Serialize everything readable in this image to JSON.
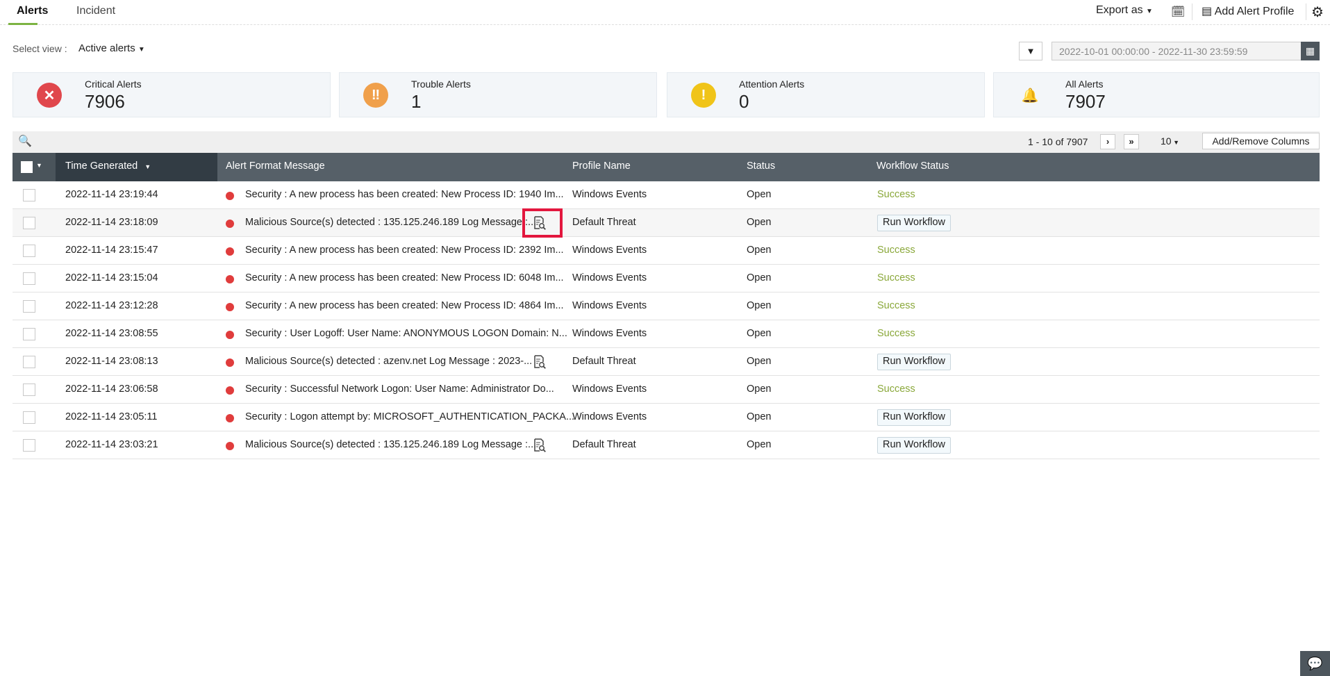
{
  "tabs": [
    {
      "label": "Alerts",
      "active": true
    },
    {
      "label": "Incident",
      "active": false
    }
  ],
  "top_actions": {
    "export_label": "Export as",
    "add_profile_label": "Add Alert Profile",
    "schedule_icon": "report-schedule-icon",
    "settings_icon": "gear-icon"
  },
  "select_view": {
    "label": "Select view :",
    "value": "Active alerts"
  },
  "date_range": "2022-10-01 00:00:00 - 2022-11-30 23:59:59",
  "cards": [
    {
      "label": "Critical Alerts",
      "count": "7906",
      "color": "#e0474c",
      "icon": "close-icon"
    },
    {
      "label": "Trouble Alerts",
      "count": "1",
      "color": "#f0a04b",
      "icon": "double-exclamation-icon"
    },
    {
      "label": "Attention Alerts",
      "count": "0",
      "color": "#f0c419",
      "icon": "exclamation-icon"
    },
    {
      "label": "All Alerts",
      "count": "7907",
      "color": "#2f86c5",
      "icon": "bell-icon"
    }
  ],
  "pagination": {
    "range": "1 - 10 of 7907",
    "page_size": "10",
    "columns_button": "Add/Remove Columns"
  },
  "columns": [
    "Time Generated",
    "Alert Format Message",
    "Profile Name",
    "Status",
    "Workflow Status"
  ],
  "rows": [
    {
      "time": "2022-11-14 23:19:44",
      "message": "Security : A new process has been created: New Process ID: 1940 Im...",
      "profile": "Windows Events",
      "status": "Open",
      "workflow": "Success"
    },
    {
      "time": "2022-11-14 23:18:09",
      "message": "Malicious Source(s) detected : 135.125.246.189 Log Message :...",
      "profile": "Default Threat",
      "status": "Open",
      "workflow": "Run Workflow",
      "doc_icon": true,
      "highlighted": true
    },
    {
      "time": "2022-11-14 23:15:47",
      "message": "Security : A new process has been created: New Process ID: 2392 Im...",
      "profile": "Windows Events",
      "status": "Open",
      "workflow": "Success"
    },
    {
      "time": "2022-11-14 23:15:04",
      "message": "Security : A new process has been created: New Process ID: 6048 Im...",
      "profile": "Windows Events",
      "status": "Open",
      "workflow": "Success"
    },
    {
      "time": "2022-11-14 23:12:28",
      "message": "Security : A new process has been created: New Process ID: 4864 Im...",
      "profile": "Windows Events",
      "status": "Open",
      "workflow": "Success"
    },
    {
      "time": "2022-11-14 23:08:55",
      "message": "Security : User Logoff: User Name: ANONYMOUS LOGON Domain: N...",
      "profile": "Windows Events",
      "status": "Open",
      "workflow": "Success"
    },
    {
      "time": "2022-11-14 23:08:13",
      "message": "Malicious Source(s) detected : azenv.net Log Message : 2023-...",
      "profile": "Default Threat",
      "status": "Open",
      "workflow": "Run Workflow",
      "doc_icon": true
    },
    {
      "time": "2022-11-14 23:06:58",
      "message": "Security : Successful Network Logon: User Name: Administrator Do...",
      "profile": "Windows Events",
      "status": "Open",
      "workflow": "Success"
    },
    {
      "time": "2022-11-14 23:05:11",
      "message": "Security : Logon attempt by: MICROSOFT_AUTHENTICATION_PACKA...",
      "profile": "Windows Events",
      "status": "Open",
      "workflow": "Run Workflow"
    },
    {
      "time": "2022-11-14 23:03:21",
      "message": "Malicious Source(s) detected : 135.125.246.189 Log Message :...",
      "profile": "Default Threat",
      "status": "Open",
      "workflow": "Run Workflow",
      "doc_icon": true
    }
  ]
}
